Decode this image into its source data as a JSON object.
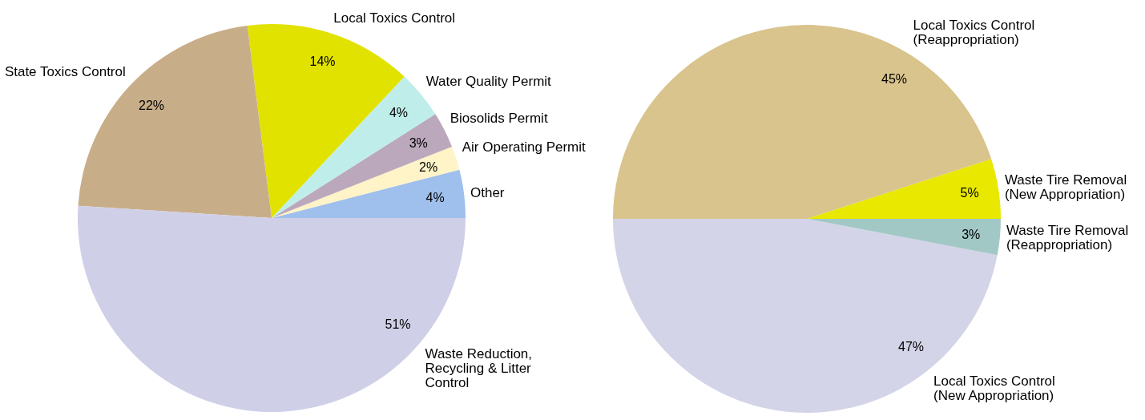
{
  "chart_data": [
    {
      "type": "pie",
      "categories": [
        "Other",
        "Air Operating Permit",
        "Biosolids Permit",
        "Water Quality Permit",
        "Local Toxics Control",
        "State Toxics Control",
        "Waste Reduction, Recycling & Litter Control"
      ],
      "values": [
        4,
        2,
        3,
        4,
        14,
        22,
        51
      ],
      "value_labels": [
        "4%",
        "2%",
        "3%",
        "4%",
        "14%",
        "22%",
        "51%"
      ],
      "colors": [
        "#9fc0ec",
        "#fff3c8",
        "#bca8bc",
        "#bfeeea",
        "#e2e200",
        "#c8ae88",
        "#cfcfe8"
      ]
    },
    {
      "type": "pie",
      "categories": [
        "Waste Tire Removal (New Appropriation)",
        "Local Toxics Control (Reappropriation)",
        "Local Toxics Control (New Appropriation)",
        "Waste Tire Removal (Reappropriation)"
      ],
      "values": [
        5,
        45,
        47,
        3
      ],
      "value_labels": [
        "5%",
        "45%",
        "47%",
        "3%"
      ],
      "colors": [
        "#e8e800",
        "#d8c48c",
        "#d4d4e8",
        "#a2c8c6"
      ]
    }
  ]
}
